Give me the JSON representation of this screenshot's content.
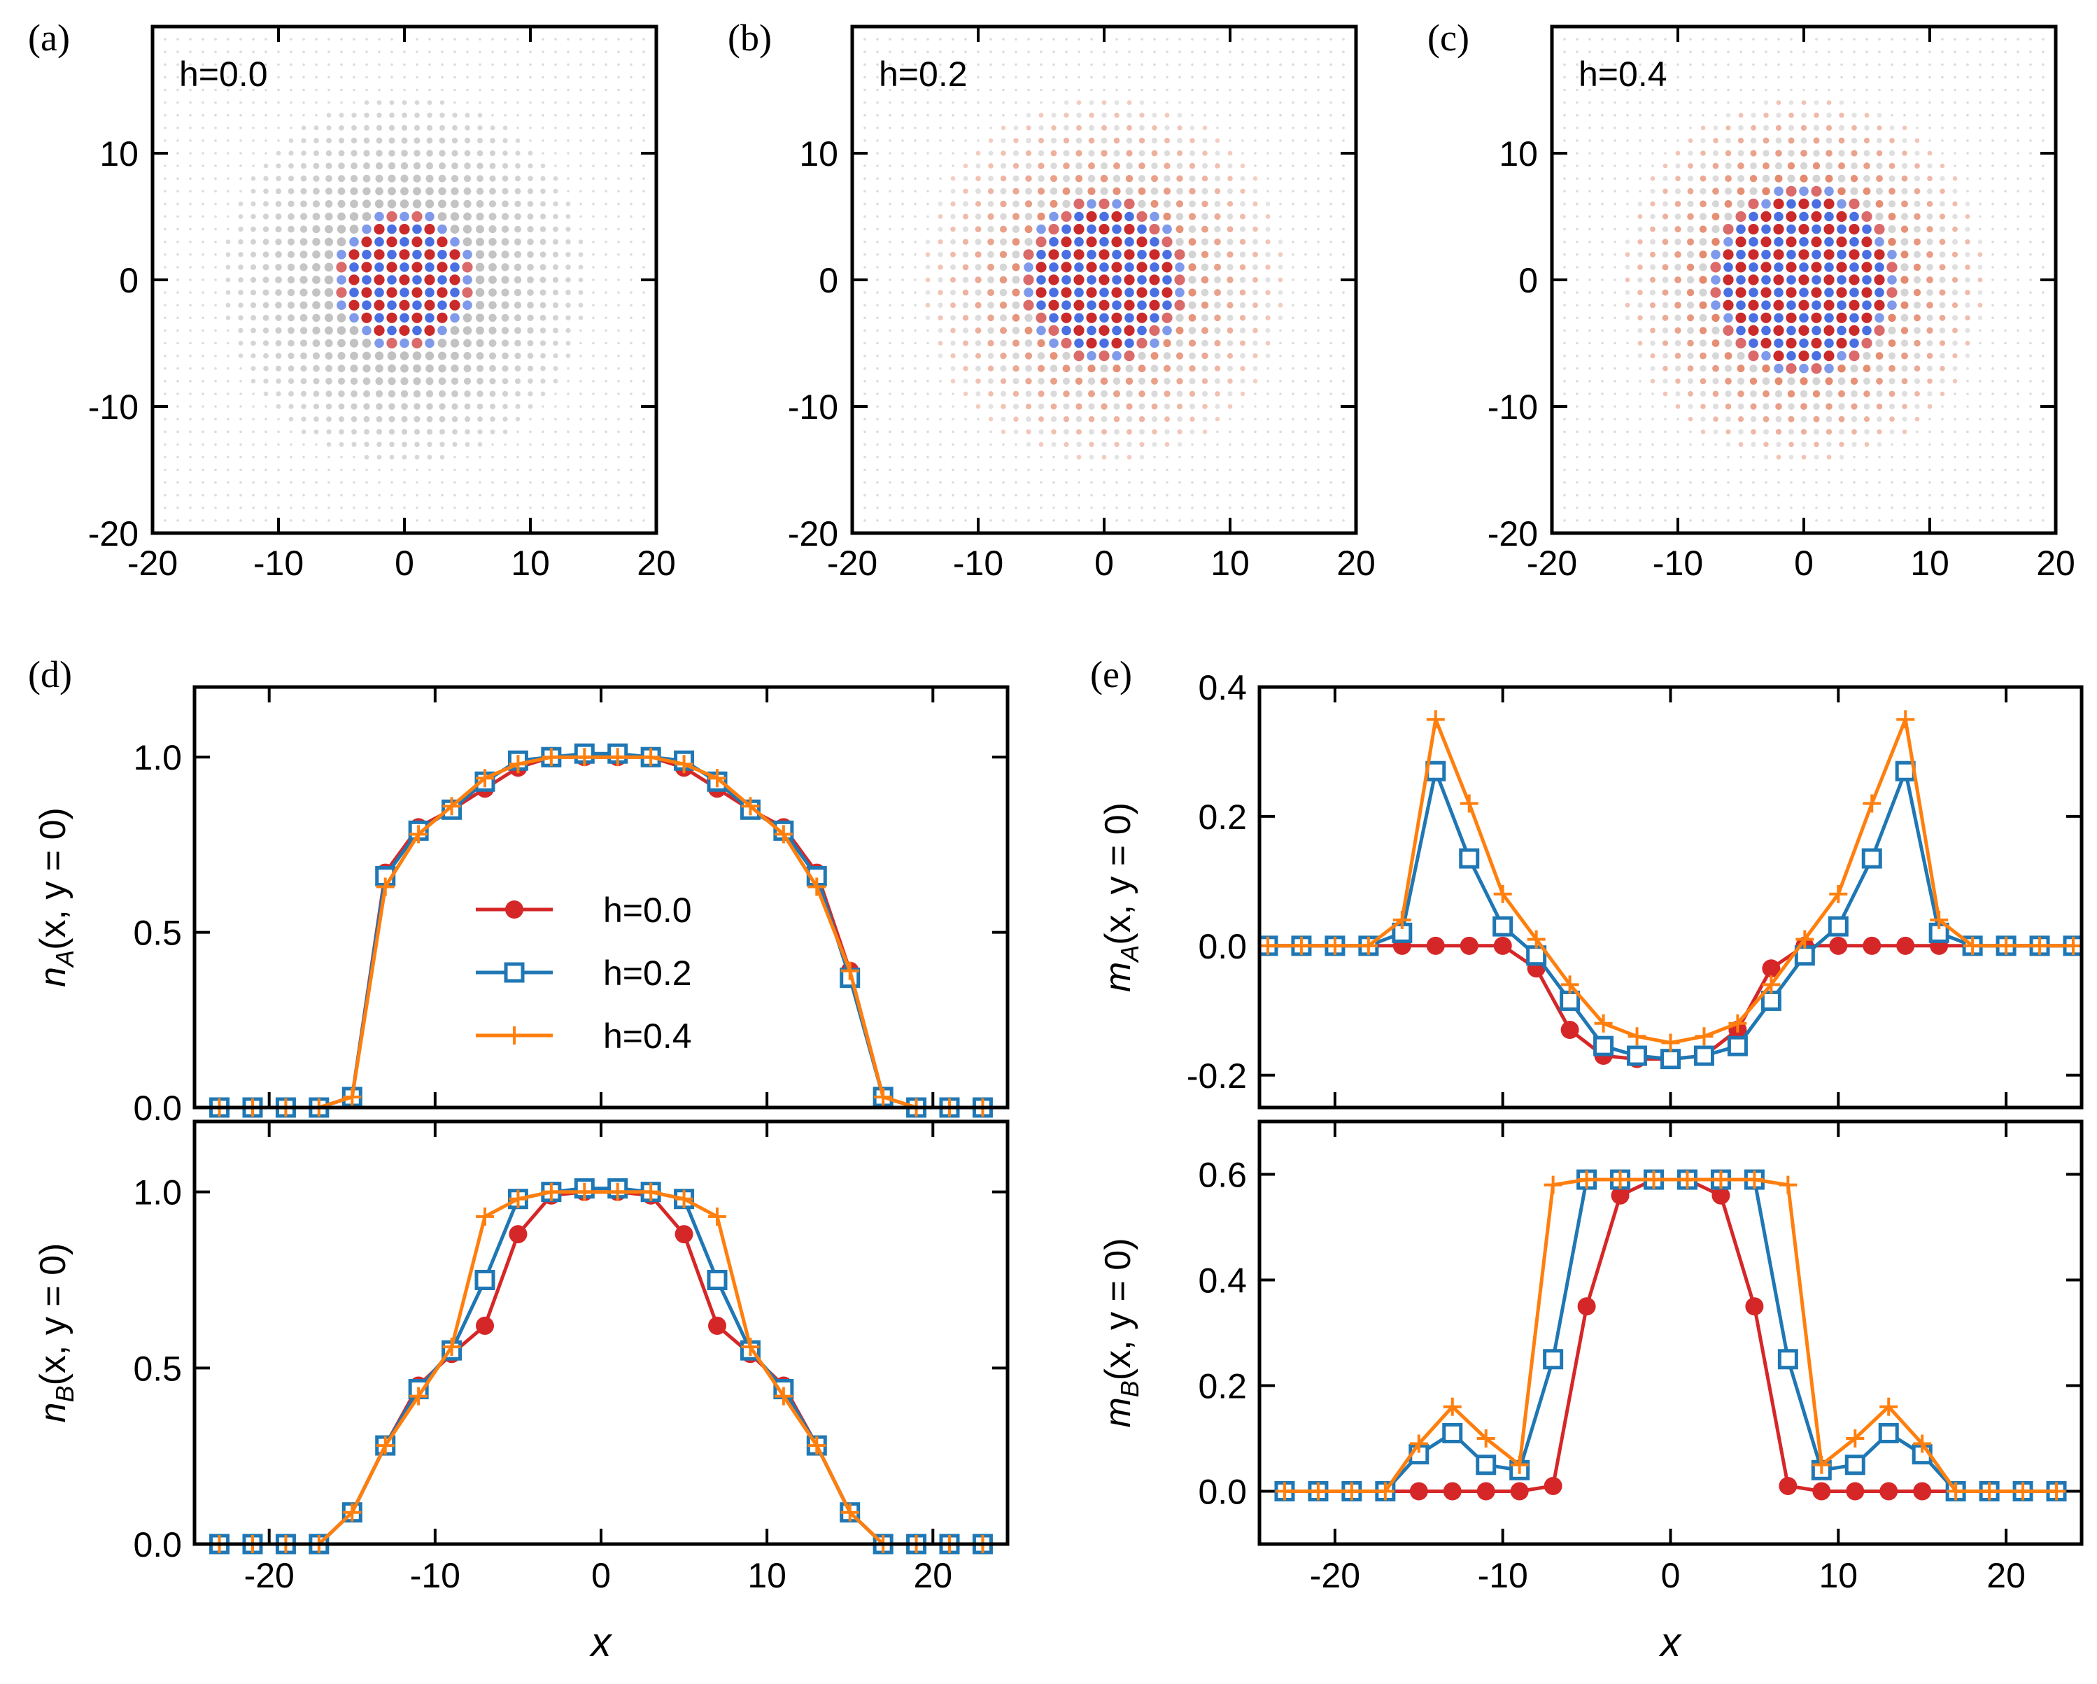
{
  "colors": {
    "h0": "#d62728",
    "h2": "#1f77b4",
    "h4": "#ff7f0e",
    "map_pos": "#cb2a2a",
    "map_neg": "#4a6fe3",
    "map_zero": "#bfbfbf"
  },
  "chart_data": [
    {
      "id": "a",
      "panel_label": "(a)",
      "type": "heatmap",
      "title": "h=0.0",
      "h": 0.0,
      "xlim": [
        -20,
        20
      ],
      "ylim": [
        -20,
        20
      ],
      "xticks": [
        "-20",
        "-10",
        "0",
        "10",
        "20"
      ],
      "yticks": [
        "-20",
        "-10",
        "0",
        "10"
      ],
      "grid_range": [
        -19,
        19
      ],
      "grid_step": 1,
      "core_radius": 5.5,
      "cloud_radius": 14.5
    },
    {
      "id": "b",
      "panel_label": "(b)",
      "type": "heatmap",
      "title": "h=0.2",
      "h": 0.2,
      "xlim": [
        -20,
        20
      ],
      "ylim": [
        -20,
        20
      ],
      "xticks": [
        "-20",
        "-10",
        "0",
        "10",
        "20"
      ],
      "yticks": [
        "-20",
        "-10",
        "0",
        "10"
      ],
      "grid_range": [
        -19,
        19
      ],
      "grid_step": 1,
      "core_radius": 6.5,
      "cloud_radius": 14.5
    },
    {
      "id": "c",
      "panel_label": "(c)",
      "type": "heatmap",
      "title": "h=0.4",
      "h": 0.4,
      "xlim": [
        -20,
        20
      ],
      "ylim": [
        -20,
        20
      ],
      "xticks": [
        "-20",
        "-10",
        "0",
        "10",
        "20"
      ],
      "yticks": [
        "-20",
        "-10",
        "0",
        "10"
      ],
      "grid_range": [
        -19,
        19
      ],
      "grid_step": 1,
      "core_radius": 7.5,
      "cloud_radius": 14.5
    },
    {
      "id": "d_top",
      "panel_label": "(d)",
      "type": "line",
      "ylabel_main": "n",
      "ylabel_sub": "A",
      "ylabel_rest": "(x, y = 0)",
      "xlabel": "",
      "xlim": [
        -24.5,
        24.5
      ],
      "ylim": [
        0,
        1.2
      ],
      "xticks": [],
      "yticks": [
        {
          "v": 0,
          "t": "0.0"
        },
        {
          "v": 0.5,
          "t": "0.5"
        },
        {
          "v": 1,
          "t": "1.0"
        }
      ],
      "x": [
        -23,
        -21,
        -19,
        -17,
        -15,
        -13,
        -11,
        -9,
        -7,
        -5,
        -3,
        -1,
        1,
        3,
        5,
        7,
        9,
        11,
        13,
        15,
        17,
        19,
        21,
        23
      ],
      "legend": true,
      "series": [
        {
          "name": "h=0.0",
          "color_key": "h0",
          "marker": "circle",
          "values": [
            0,
            0,
            0,
            0,
            0.03,
            0.67,
            0.8,
            0.85,
            0.91,
            0.97,
            1.0,
            1.0,
            1.0,
            1.0,
            0.97,
            0.91,
            0.85,
            0.8,
            0.67,
            0.39,
            0.03,
            0,
            0,
            0
          ]
        },
        {
          "name": "h=0.2",
          "color_key": "h2",
          "marker": "square",
          "values": [
            0,
            0,
            0,
            0,
            0.03,
            0.66,
            0.79,
            0.85,
            0.93,
            0.99,
            1.0,
            1.01,
            1.01,
            1.0,
            0.99,
            0.93,
            0.85,
            0.79,
            0.66,
            0.37,
            0.03,
            0,
            0,
            0
          ]
        },
        {
          "name": "h=0.4",
          "color_key": "h4",
          "marker": "plus",
          "values": [
            0,
            0,
            0,
            0,
            0.03,
            0.63,
            0.78,
            0.86,
            0.94,
            0.98,
            1.0,
            1.0,
            1.0,
            1.0,
            0.98,
            0.94,
            0.86,
            0.78,
            0.63,
            0.39,
            0.03,
            0,
            0,
            0
          ]
        }
      ]
    },
    {
      "id": "d_bottom",
      "panel_label": "",
      "type": "line",
      "ylabel_main": "n",
      "ylabel_sub": "B",
      "ylabel_rest": "(x, y = 0)",
      "xlabel": "x",
      "xlim": [
        -24.5,
        24.5
      ],
      "ylim": [
        0,
        1.2
      ],
      "xticks": [
        {
          "v": -20,
          "t": "-20"
        },
        {
          "v": -10,
          "t": "-10"
        },
        {
          "v": 0,
          "t": "0"
        },
        {
          "v": 10,
          "t": "10"
        },
        {
          "v": 20,
          "t": "20"
        }
      ],
      "yticks": [
        {
          "v": 0,
          "t": "0.0"
        },
        {
          "v": 0.5,
          "t": "0.5"
        },
        {
          "v": 1,
          "t": "1.0"
        }
      ],
      "x": [
        -23,
        -21,
        -19,
        -17,
        -15,
        -13,
        -11,
        -9,
        -7,
        -5,
        -3,
        -1,
        1,
        3,
        5,
        7,
        9,
        11,
        13,
        15,
        17,
        19,
        21,
        23
      ],
      "legend": false,
      "series": [
        {
          "name": "h=0.0",
          "color_key": "h0",
          "marker": "circle",
          "values": [
            0,
            0,
            0,
            0,
            0.09,
            0.28,
            0.45,
            0.54,
            0.62,
            0.88,
            0.99,
            1.0,
            1.0,
            0.99,
            0.88,
            0.62,
            0.54,
            0.45,
            0.28,
            0.09,
            0,
            0,
            0,
            0
          ]
        },
        {
          "name": "h=0.2",
          "color_key": "h2",
          "marker": "square",
          "values": [
            0,
            0,
            0,
            0,
            0.09,
            0.28,
            0.44,
            0.55,
            0.75,
            0.98,
            1.0,
            1.01,
            1.01,
            1.0,
            0.98,
            0.75,
            0.55,
            0.44,
            0.28,
            0.09,
            0,
            0,
            0,
            0
          ]
        },
        {
          "name": "h=0.4",
          "color_key": "h4",
          "marker": "plus",
          "values": [
            0,
            0,
            0,
            0,
            0.09,
            0.28,
            0.42,
            0.56,
            0.93,
            0.98,
            1.0,
            1.0,
            1.0,
            1.0,
            0.98,
            0.93,
            0.56,
            0.42,
            0.28,
            0.09,
            0,
            0,
            0,
            0
          ]
        }
      ]
    },
    {
      "id": "e_top",
      "panel_label": "(e)",
      "type": "line",
      "ylabel_main": "m",
      "ylabel_sub": "A",
      "ylabel_rest": "(x, y = 0)",
      "xlabel": "",
      "xlim": [
        -24.5,
        24.5
      ],
      "ylim": [
        -0.25,
        0.4
      ],
      "xticks": [],
      "yticks": [
        {
          "v": -0.2,
          "t": "-0.2"
        },
        {
          "v": 0,
          "t": "0.0"
        },
        {
          "v": 0.2,
          "t": "0.2"
        },
        {
          "v": 0.4,
          "t": "0.4"
        }
      ],
      "x": [
        -24,
        -22,
        -20,
        -18,
        -16,
        -14,
        -12,
        -10,
        -8,
        -6,
        -4,
        -2,
        0,
        2,
        4,
        6,
        8,
        10,
        12,
        14,
        16,
        18,
        20,
        22,
        24
      ],
      "legend": false,
      "series": [
        {
          "name": "h=0.0",
          "color_key": "h0",
          "marker": "circle",
          "values": [
            0,
            0,
            0,
            0,
            0,
            0,
            0,
            0,
            -0.035,
            -0.13,
            -0.17,
            -0.175,
            -0.175,
            -0.17,
            -0.13,
            -0.035,
            0,
            0,
            0,
            0,
            0,
            0,
            0,
            0,
            0
          ]
        },
        {
          "name": "h=0.2",
          "color_key": "h2",
          "marker": "square",
          "values": [
            0,
            0,
            0,
            0,
            0.02,
            0.27,
            0.135,
            0.03,
            -0.015,
            -0.085,
            -0.155,
            -0.17,
            -0.175,
            -0.17,
            -0.155,
            -0.085,
            -0.015,
            0.03,
            0.135,
            0.27,
            0.02,
            0,
            0,
            0,
            0
          ]
        },
        {
          "name": "h=0.4",
          "color_key": "h4",
          "marker": "plus",
          "values": [
            0,
            0,
            0,
            0,
            0.04,
            0.35,
            0.22,
            0.08,
            0.01,
            -0.06,
            -0.12,
            -0.14,
            -0.15,
            -0.14,
            -0.12,
            -0.06,
            0.01,
            0.08,
            0.22,
            0.35,
            0.04,
            0,
            0,
            0,
            0
          ]
        }
      ]
    },
    {
      "id": "e_bottom",
      "panel_label": "",
      "type": "line",
      "ylabel_main": "m",
      "ylabel_sub": "B",
      "ylabel_rest": "(x, y = 0)",
      "xlabel": "x",
      "xlim": [
        -24.5,
        24.5
      ],
      "ylim": [
        -0.1,
        0.7
      ],
      "xticks": [
        {
          "v": -20,
          "t": "-20"
        },
        {
          "v": -10,
          "t": "-10"
        },
        {
          "v": 0,
          "t": "0"
        },
        {
          "v": 10,
          "t": "10"
        },
        {
          "v": 20,
          "t": "20"
        }
      ],
      "yticks": [
        {
          "v": 0,
          "t": "0.0"
        },
        {
          "v": 0.2,
          "t": "0.2"
        },
        {
          "v": 0.4,
          "t": "0.4"
        },
        {
          "v": 0.6,
          "t": "0.6"
        }
      ],
      "x": [
        -23,
        -21,
        -19,
        -17,
        -15,
        -13,
        -11,
        -9,
        -7,
        -5,
        -3,
        -1,
        1,
        3,
        5,
        7,
        9,
        11,
        13,
        15,
        17,
        19,
        21,
        23
      ],
      "legend": false,
      "series": [
        {
          "name": "h=0.0",
          "color_key": "h0",
          "marker": "circle",
          "values": [
            0,
            0,
            0,
            0,
            0,
            0,
            0,
            0,
            0.01,
            0.35,
            0.56,
            0.59,
            0.59,
            0.56,
            0.35,
            0.01,
            0,
            0,
            0,
            0,
            0,
            0,
            0,
            0
          ]
        },
        {
          "name": "h=0.2",
          "color_key": "h2",
          "marker": "square",
          "values": [
            0,
            0,
            0,
            0,
            0.07,
            0.11,
            0.05,
            0.04,
            0.25,
            0.59,
            0.59,
            0.59,
            0.59,
            0.59,
            0.59,
            0.25,
            0.04,
            0.05,
            0.11,
            0.07,
            0,
            0,
            0,
            0
          ]
        },
        {
          "name": "h=0.4",
          "color_key": "h4",
          "marker": "plus",
          "values": [
            0,
            0,
            0,
            0,
            0.09,
            0.16,
            0.1,
            0.05,
            0.58,
            0.59,
            0.59,
            0.59,
            0.59,
            0.59,
            0.59,
            0.58,
            0.05,
            0.1,
            0.16,
            0.09,
            0,
            0,
            0,
            0
          ]
        }
      ]
    }
  ]
}
